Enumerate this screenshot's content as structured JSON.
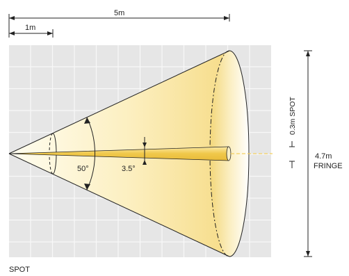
{
  "dimensions": {
    "total_distance": "5m",
    "unit_distance": "1m"
  },
  "beams": {
    "wide_angle": "50°",
    "narrow_angle": "3.5°"
  },
  "side_labels": {
    "spot_size": "0.3m SPOT",
    "fringe_size": "4.7m",
    "fringe_word": "FRINGE"
  },
  "footer": {
    "caption": "SPOT"
  },
  "colors": {
    "grid_bg": "#e6e6e6",
    "grid_line": "#f7f7f7",
    "cone_light": "#fff6d6",
    "cone_mid": "#f8e3a0",
    "cone_dark": "#f0cc60",
    "spot_beam": "#f2d060",
    "spot_dash": "#f4d060"
  }
}
